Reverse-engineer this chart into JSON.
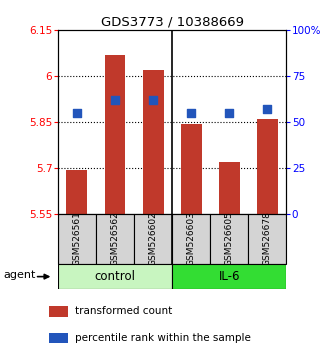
{
  "title": "GDS3773 / 10388669",
  "samples": [
    "GSM526561",
    "GSM526562",
    "GSM526602",
    "GSM526603",
    "GSM526605",
    "GSM526678"
  ],
  "red_values": [
    5.695,
    6.07,
    6.02,
    5.845,
    5.72,
    5.86
  ],
  "blue_values": [
    55,
    62,
    62,
    55,
    55,
    57
  ],
  "ylim_left": [
    5.55,
    6.15
  ],
  "ylim_right": [
    0,
    100
  ],
  "yticks_left": [
    5.55,
    5.7,
    5.85,
    6.0,
    6.15
  ],
  "yticks_right": [
    0,
    25,
    50,
    75,
    100
  ],
  "ytick_labels_left": [
    "5.55",
    "5.7",
    "5.85",
    "6",
    "6.15"
  ],
  "ytick_labels_right": [
    "0",
    "25",
    "50",
    "75",
    "100%"
  ],
  "hlines": [
    5.7,
    5.85,
    6.0
  ],
  "bar_color": "#c0392b",
  "dot_color": "#2255bb",
  "bar_bottom": 5.55,
  "control_color": "#c8f5c0",
  "il6_color": "#33dd33",
  "legend_items": [
    {
      "color": "#c0392b",
      "label": "transformed count"
    },
    {
      "color": "#2255bb",
      "label": "percentile rank within the sample"
    }
  ],
  "bar_width": 0.55,
  "dot_size": 36
}
